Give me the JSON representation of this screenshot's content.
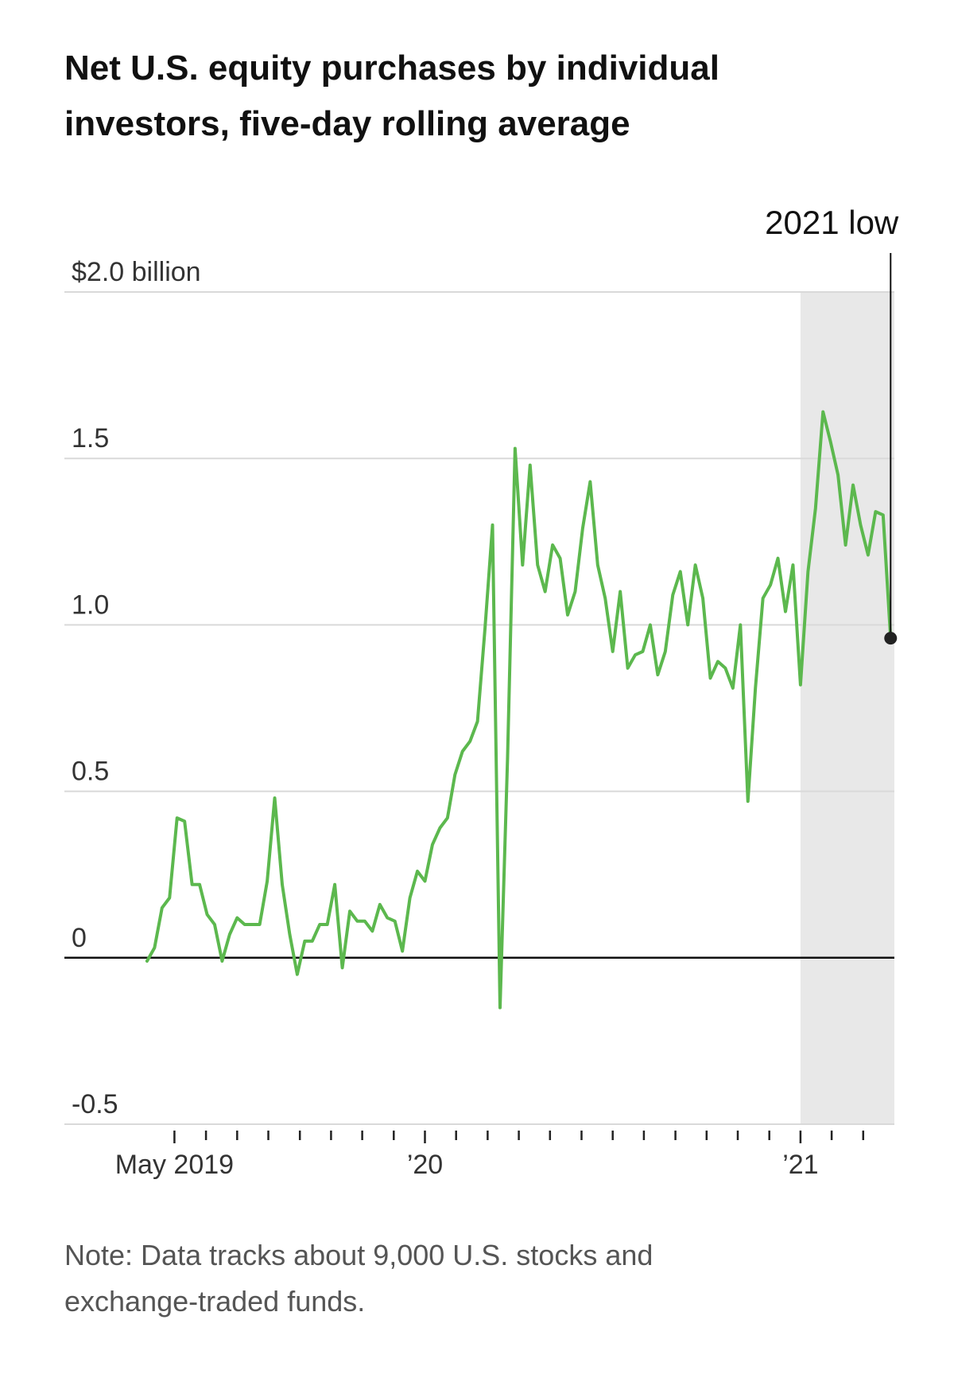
{
  "chart_data": {
    "type": "line",
    "title_lines": [
      "Net U.S. equity purchases by individual",
      "investors, five-day rolling average"
    ],
    "note_lines": [
      "Note: Data tracks about 9,000 U.S. stocks and",
      "exchange-traded funds."
    ],
    "annotation": {
      "text": "2021 low"
    },
    "xlim": [
      2019.04,
      2021.25
    ],
    "ylim": [
      -0.5,
      2.0
    ],
    "yticks": [
      {
        "value": 2,
        "label": "$2.0 billion"
      },
      1.5,
      {
        "value": 1,
        "label": "1.0"
      },
      0.5,
      0,
      -0.5
    ],
    "xticks": [
      {
        "value": 2019.333,
        "label": "May 2019"
      },
      {
        "value": 2020,
        "label": "’20"
      },
      {
        "value": 2021,
        "label": "’21"
      }
    ],
    "xminorticks": [
      2019.417,
      2019.5,
      2019.583,
      2019.667,
      2019.75,
      2019.833,
      2019.917,
      2020.083,
      2020.167,
      2020.25,
      2020.333,
      2020.417,
      2020.5,
      2020.583,
      2020.667,
      2020.75,
      2020.833,
      2020.917,
      2021.083,
      2021.167
    ],
    "shaded_xrange": [
      2021,
      2021.25
    ],
    "shade_color": "#e8e8e8",
    "grid": true,
    "x": [
      2019.26,
      2019.28,
      2019.3,
      2019.32,
      2019.34,
      2019.36,
      2019.38,
      2019.4,
      2019.42,
      2019.44,
      2019.46,
      2019.48,
      2019.5,
      2019.52,
      2019.54,
      2019.56,
      2019.58,
      2019.6,
      2019.62,
      2019.64,
      2019.66,
      2019.68,
      2019.7,
      2019.72,
      2019.74,
      2019.76,
      2019.78,
      2019.8,
      2019.82,
      2019.84,
      2019.86,
      2019.88,
      2019.9,
      2019.92,
      2019.94,
      2019.96,
      2019.98,
      2020.0,
      2020.02,
      2020.04,
      2020.06,
      2020.08,
      2020.1,
      2020.12,
      2020.14,
      2020.16,
      2020.18,
      2020.2,
      2020.22,
      2020.24,
      2020.26,
      2020.28,
      2020.3,
      2020.32,
      2020.34,
      2020.36,
      2020.38,
      2020.4,
      2020.42,
      2020.44,
      2020.46,
      2020.48,
      2020.5,
      2020.52,
      2020.54,
      2020.56,
      2020.58,
      2020.6,
      2020.62,
      2020.64,
      2020.66,
      2020.68,
      2020.7,
      2020.72,
      2020.74,
      2020.76,
      2020.78,
      2020.8,
      2020.82,
      2020.84,
      2020.86,
      2020.88,
      2020.9,
      2020.92,
      2020.94,
      2020.96,
      2020.98,
      2021.0,
      2021.02,
      2021.04,
      2021.06,
      2021.08,
      2021.1,
      2021.12,
      2021.14,
      2021.16,
      2021.18,
      2021.2,
      2021.22,
      2021.24
    ],
    "series": [
      {
        "color": "#5cb84e",
        "values": [
          -0.01,
          0.03,
          0.15,
          0.18,
          0.42,
          0.41,
          0.22,
          0.22,
          0.13,
          0.1,
          -0.01,
          0.07,
          0.12,
          0.1,
          0.1,
          0.1,
          0.23,
          0.48,
          0.22,
          0.07,
          -0.05,
          0.05,
          0.05,
          0.1,
          0.1,
          0.22,
          -0.03,
          0.14,
          0.11,
          0.11,
          0.08,
          0.16,
          0.12,
          0.11,
          0.02,
          0.18,
          0.26,
          0.23,
          0.34,
          0.39,
          0.42,
          0.55,
          0.62,
          0.65,
          0.71,
          0.99,
          1.3,
          -0.15,
          0.6,
          1.53,
          1.18,
          1.48,
          1.18,
          1.1,
          1.24,
          1.2,
          1.03,
          1.1,
          1.29,
          1.43,
          1.18,
          1.08,
          0.92,
          1.1,
          0.87,
          0.91,
          0.92,
          1.0,
          0.85,
          0.92,
          1.09,
          1.16,
          1.0,
          1.18,
          1.08,
          0.84,
          0.89,
          0.87,
          0.81,
          1.0,
          0.47,
          0.81,
          1.08,
          1.12,
          1.2,
          1.04,
          1.18,
          0.82,
          1.16,
          1.35,
          1.64,
          1.55,
          1.45,
          1.24,
          1.42,
          1.3,
          1.21,
          1.34,
          1.33,
          0.96
        ]
      }
    ]
  }
}
